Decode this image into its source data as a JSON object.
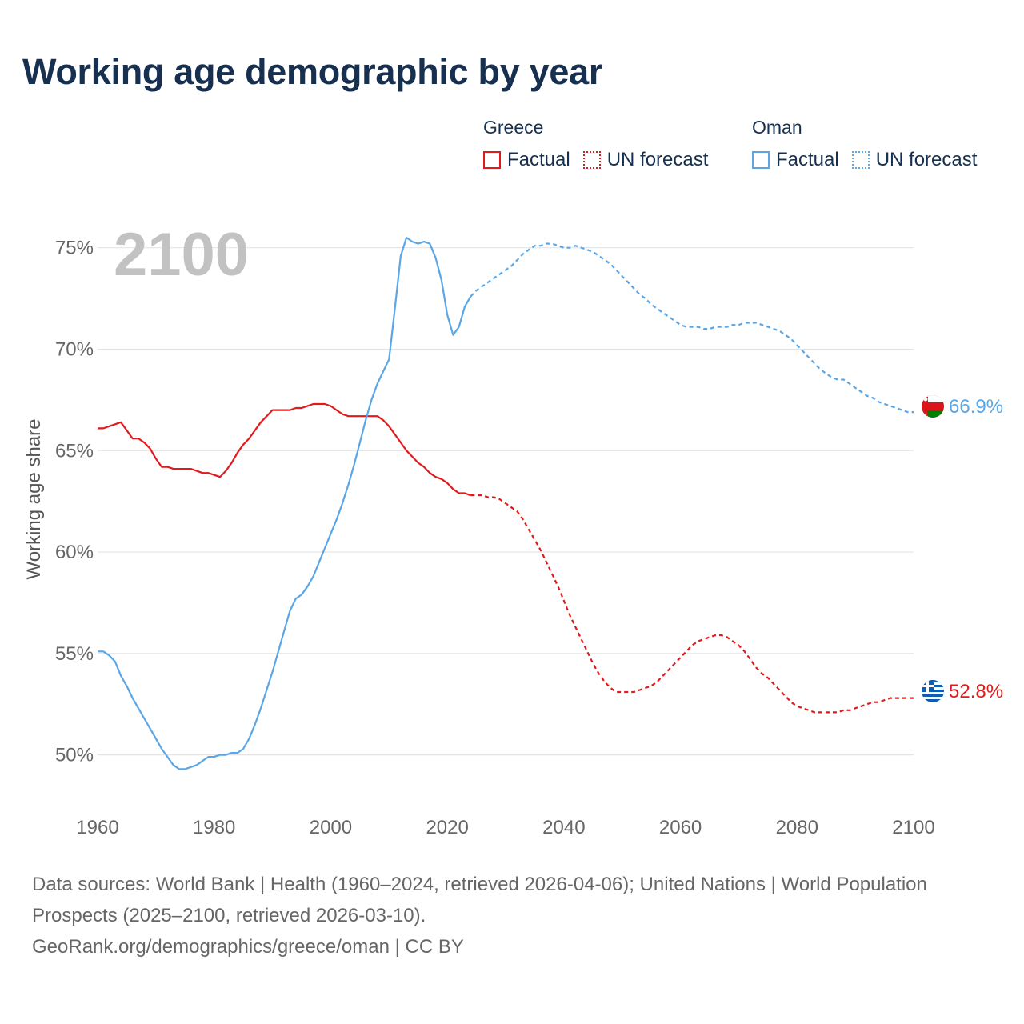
{
  "chart_data": {
    "type": "line",
    "title": "Working age demographic by year",
    "ylabel": "Working age share",
    "xlabel": "",
    "year_watermark": "2100",
    "xlim": [
      1960,
      2100
    ],
    "ylim": [
      47.5,
      77
    ],
    "x_ticks": [
      1960,
      1980,
      2000,
      2020,
      2040,
      2060,
      2080,
      2100
    ],
    "y_ticks": [
      {
        "value": 50,
        "label": "50%"
      },
      {
        "value": 55,
        "label": "55%"
      },
      {
        "value": 60,
        "label": "60%"
      },
      {
        "value": 65,
        "label": "65%"
      },
      {
        "value": 70,
        "label": "70%"
      },
      {
        "value": 75,
        "label": "75%"
      }
    ],
    "grid": true,
    "legend": [
      {
        "group": "Greece",
        "items": [
          {
            "label": "Factual",
            "style": "solid",
            "color": "#e31a1c"
          },
          {
            "label": "UN forecast",
            "style": "dotted",
            "color": "#e31a1c"
          }
        ]
      },
      {
        "group": "Oman",
        "items": [
          {
            "label": "Factual",
            "style": "solid",
            "color": "#5aa6e6"
          },
          {
            "label": "UN forecast",
            "style": "dotted",
            "color": "#5aa6e6"
          }
        ]
      }
    ],
    "series": [
      {
        "name": "Greece",
        "color": "#e31a1c",
        "end_label": "52.8%",
        "factual": [
          [
            1960,
            66.1
          ],
          [
            1961,
            66.1
          ],
          [
            1962,
            66.2
          ],
          [
            1963,
            66.3
          ],
          [
            1964,
            66.4
          ],
          [
            1965,
            66.0
          ],
          [
            1966,
            65.6
          ],
          [
            1967,
            65.6
          ],
          [
            1968,
            65.4
          ],
          [
            1969,
            65.1
          ],
          [
            1970,
            64.6
          ],
          [
            1971,
            64.2
          ],
          [
            1972,
            64.2
          ],
          [
            1973,
            64.1
          ],
          [
            1974,
            64.1
          ],
          [
            1975,
            64.1
          ],
          [
            1976,
            64.1
          ],
          [
            1977,
            64.0
          ],
          [
            1978,
            63.9
          ],
          [
            1979,
            63.9
          ],
          [
            1980,
            63.8
          ],
          [
            1981,
            63.7
          ],
          [
            1982,
            64.0
          ],
          [
            1983,
            64.4
          ],
          [
            1984,
            64.9
          ],
          [
            1985,
            65.3
          ],
          [
            1986,
            65.6
          ],
          [
            1987,
            66.0
          ],
          [
            1988,
            66.4
          ],
          [
            1989,
            66.7
          ],
          [
            1990,
            67.0
          ],
          [
            1991,
            67.0
          ],
          [
            1992,
            67.0
          ],
          [
            1993,
            67.0
          ],
          [
            1994,
            67.1
          ],
          [
            1995,
            67.1
          ],
          [
            1996,
            67.2
          ],
          [
            1997,
            67.3
          ],
          [
            1998,
            67.3
          ],
          [
            1999,
            67.3
          ],
          [
            2000,
            67.2
          ],
          [
            2001,
            67.0
          ],
          [
            2002,
            66.8
          ],
          [
            2003,
            66.7
          ],
          [
            2004,
            66.7
          ],
          [
            2005,
            66.7
          ],
          [
            2006,
            66.7
          ],
          [
            2007,
            66.7
          ],
          [
            2008,
            66.7
          ],
          [
            2009,
            66.5
          ],
          [
            2010,
            66.2
          ],
          [
            2011,
            65.8
          ],
          [
            2012,
            65.4
          ],
          [
            2013,
            65.0
          ],
          [
            2014,
            64.7
          ],
          [
            2015,
            64.4
          ],
          [
            2016,
            64.2
          ],
          [
            2017,
            63.9
          ],
          [
            2018,
            63.7
          ],
          [
            2019,
            63.6
          ],
          [
            2020,
            63.4
          ],
          [
            2021,
            63.1
          ],
          [
            2022,
            62.9
          ],
          [
            2023,
            62.9
          ],
          [
            2024,
            62.8
          ]
        ],
        "forecast": [
          [
            2024,
            62.8
          ],
          [
            2025,
            62.8
          ],
          [
            2026,
            62.8
          ],
          [
            2027,
            62.7
          ],
          [
            2028,
            62.7
          ],
          [
            2029,
            62.6
          ],
          [
            2030,
            62.4
          ],
          [
            2031,
            62.2
          ],
          [
            2032,
            62.0
          ],
          [
            2033,
            61.6
          ],
          [
            2034,
            61.1
          ],
          [
            2035,
            60.6
          ],
          [
            2036,
            60.1
          ],
          [
            2037,
            59.5
          ],
          [
            2038,
            58.9
          ],
          [
            2039,
            58.3
          ],
          [
            2040,
            57.6
          ],
          [
            2041,
            56.9
          ],
          [
            2042,
            56.3
          ],
          [
            2043,
            55.7
          ],
          [
            2044,
            55.1
          ],
          [
            2045,
            54.5
          ],
          [
            2046,
            54.0
          ],
          [
            2047,
            53.6
          ],
          [
            2048,
            53.3
          ],
          [
            2049,
            53.1
          ],
          [
            2050,
            53.1
          ],
          [
            2051,
            53.1
          ],
          [
            2052,
            53.1
          ],
          [
            2053,
            53.2
          ],
          [
            2054,
            53.3
          ],
          [
            2055,
            53.4
          ],
          [
            2056,
            53.6
          ],
          [
            2057,
            53.9
          ],
          [
            2058,
            54.2
          ],
          [
            2059,
            54.5
          ],
          [
            2060,
            54.8
          ],
          [
            2061,
            55.1
          ],
          [
            2062,
            55.4
          ],
          [
            2063,
            55.6
          ],
          [
            2064,
            55.7
          ],
          [
            2065,
            55.8
          ],
          [
            2066,
            55.9
          ],
          [
            2067,
            55.9
          ],
          [
            2068,
            55.8
          ],
          [
            2069,
            55.6
          ],
          [
            2070,
            55.4
          ],
          [
            2071,
            55.1
          ],
          [
            2072,
            54.7
          ],
          [
            2073,
            54.3
          ],
          [
            2074,
            54.0
          ],
          [
            2075,
            53.8
          ],
          [
            2076,
            53.5
          ],
          [
            2077,
            53.2
          ],
          [
            2078,
            52.9
          ],
          [
            2079,
            52.6
          ],
          [
            2080,
            52.4
          ],
          [
            2081,
            52.3
          ],
          [
            2082,
            52.2
          ],
          [
            2083,
            52.1
          ],
          [
            2084,
            52.1
          ],
          [
            2085,
            52.1
          ],
          [
            2086,
            52.1
          ],
          [
            2087,
            52.1
          ],
          [
            2088,
            52.2
          ],
          [
            2089,
            52.2
          ],
          [
            2090,
            52.3
          ],
          [
            2091,
            52.4
          ],
          [
            2092,
            52.5
          ],
          [
            2093,
            52.6
          ],
          [
            2094,
            52.6
          ],
          [
            2095,
            52.7
          ],
          [
            2096,
            52.8
          ],
          [
            2097,
            52.8
          ],
          [
            2098,
            52.8
          ],
          [
            2099,
            52.8
          ],
          [
            2100,
            52.8
          ]
        ]
      },
      {
        "name": "Oman",
        "color": "#5aa6e6",
        "end_label": "66.9%",
        "factual": [
          [
            1960,
            55.1
          ],
          [
            1961,
            55.1
          ],
          [
            1962,
            54.9
          ],
          [
            1963,
            54.6
          ],
          [
            1964,
            53.9
          ],
          [
            1965,
            53.4
          ],
          [
            1966,
            52.8
          ],
          [
            1967,
            52.3
          ],
          [
            1968,
            51.8
          ],
          [
            1969,
            51.3
          ],
          [
            1970,
            50.8
          ],
          [
            1971,
            50.3
          ],
          [
            1972,
            49.9
          ],
          [
            1973,
            49.5
          ],
          [
            1974,
            49.3
          ],
          [
            1975,
            49.3
          ],
          [
            1976,
            49.4
          ],
          [
            1977,
            49.5
          ],
          [
            1978,
            49.7
          ],
          [
            1979,
            49.9
          ],
          [
            1980,
            49.9
          ],
          [
            1981,
            50.0
          ],
          [
            1982,
            50.0
          ],
          [
            1983,
            50.1
          ],
          [
            1984,
            50.1
          ],
          [
            1985,
            50.3
          ],
          [
            1986,
            50.8
          ],
          [
            1987,
            51.5
          ],
          [
            1988,
            52.3
          ],
          [
            1989,
            53.2
          ],
          [
            1990,
            54.1
          ],
          [
            1991,
            55.1
          ],
          [
            1992,
            56.1
          ],
          [
            1993,
            57.1
          ],
          [
            1994,
            57.7
          ],
          [
            1995,
            57.9
          ],
          [
            1996,
            58.3
          ],
          [
            1997,
            58.8
          ],
          [
            1998,
            59.5
          ],
          [
            1999,
            60.2
          ],
          [
            2000,
            60.9
          ],
          [
            2001,
            61.6
          ],
          [
            2002,
            62.4
          ],
          [
            2003,
            63.3
          ],
          [
            2004,
            64.3
          ],
          [
            2005,
            65.4
          ],
          [
            2006,
            66.5
          ],
          [
            2007,
            67.5
          ],
          [
            2008,
            68.3
          ],
          [
            2009,
            68.9
          ],
          [
            2010,
            69.5
          ],
          [
            2011,
            72.0
          ],
          [
            2012,
            74.6
          ],
          [
            2013,
            75.5
          ],
          [
            2014,
            75.3
          ],
          [
            2015,
            75.2
          ],
          [
            2016,
            75.3
          ],
          [
            2017,
            75.2
          ],
          [
            2018,
            74.5
          ],
          [
            2019,
            73.4
          ],
          [
            2020,
            71.7
          ],
          [
            2021,
            70.7
          ],
          [
            2022,
            71.1
          ],
          [
            2023,
            72.1
          ],
          [
            2024,
            72.6
          ]
        ],
        "forecast": [
          [
            2024,
            72.6
          ],
          [
            2025,
            72.9
          ],
          [
            2026,
            73.1
          ],
          [
            2027,
            73.3
          ],
          [
            2028,
            73.5
          ],
          [
            2029,
            73.7
          ],
          [
            2030,
            73.9
          ],
          [
            2031,
            74.1
          ],
          [
            2032,
            74.4
          ],
          [
            2033,
            74.7
          ],
          [
            2034,
            74.9
          ],
          [
            2035,
            75.1
          ],
          [
            2036,
            75.1
          ],
          [
            2037,
            75.2
          ],
          [
            2038,
            75.2
          ],
          [
            2039,
            75.1
          ],
          [
            2040,
            75.0
          ],
          [
            2041,
            75.0
          ],
          [
            2042,
            75.1
          ],
          [
            2043,
            75.0
          ],
          [
            2044,
            74.9
          ],
          [
            2045,
            74.8
          ],
          [
            2046,
            74.6
          ],
          [
            2047,
            74.4
          ],
          [
            2048,
            74.2
          ],
          [
            2049,
            73.9
          ],
          [
            2050,
            73.6
          ],
          [
            2051,
            73.3
          ],
          [
            2052,
            73.0
          ],
          [
            2053,
            72.7
          ],
          [
            2054,
            72.5
          ],
          [
            2055,
            72.2
          ],
          [
            2056,
            72.0
          ],
          [
            2057,
            71.8
          ],
          [
            2058,
            71.6
          ],
          [
            2059,
            71.4
          ],
          [
            2060,
            71.2
          ],
          [
            2061,
            71.1
          ],
          [
            2062,
            71.1
          ],
          [
            2063,
            71.1
          ],
          [
            2064,
            71.0
          ],
          [
            2065,
            71.0
          ],
          [
            2066,
            71.1
          ],
          [
            2067,
            71.1
          ],
          [
            2068,
            71.1
          ],
          [
            2069,
            71.2
          ],
          [
            2070,
            71.2
          ],
          [
            2071,
            71.3
          ],
          [
            2072,
            71.3
          ],
          [
            2073,
            71.3
          ],
          [
            2074,
            71.2
          ],
          [
            2075,
            71.1
          ],
          [
            2076,
            71.0
          ],
          [
            2077,
            70.9
          ],
          [
            2078,
            70.7
          ],
          [
            2079,
            70.5
          ],
          [
            2080,
            70.2
          ],
          [
            2081,
            69.9
          ],
          [
            2082,
            69.6
          ],
          [
            2083,
            69.3
          ],
          [
            2084,
            69.0
          ],
          [
            2085,
            68.8
          ],
          [
            2086,
            68.6
          ],
          [
            2087,
            68.5
          ],
          [
            2088,
            68.5
          ],
          [
            2089,
            68.3
          ],
          [
            2090,
            68.1
          ],
          [
            2091,
            67.9
          ],
          [
            2092,
            67.7
          ],
          [
            2093,
            67.6
          ],
          [
            2094,
            67.4
          ],
          [
            2095,
            67.3
          ],
          [
            2096,
            67.2
          ],
          [
            2097,
            67.1
          ],
          [
            2098,
            67.0
          ],
          [
            2099,
            66.9
          ],
          [
            2100,
            66.9
          ]
        ]
      }
    ]
  },
  "footer": {
    "sources": "Data sources: World Bank | Health (1960–2024, retrieved 2026-04-06); United Nations | World Population Prospects (2025–2100, retrieved 2026-03-10).",
    "attribution": "GeoRank.org/demographics/greece/oman | CC BY"
  }
}
